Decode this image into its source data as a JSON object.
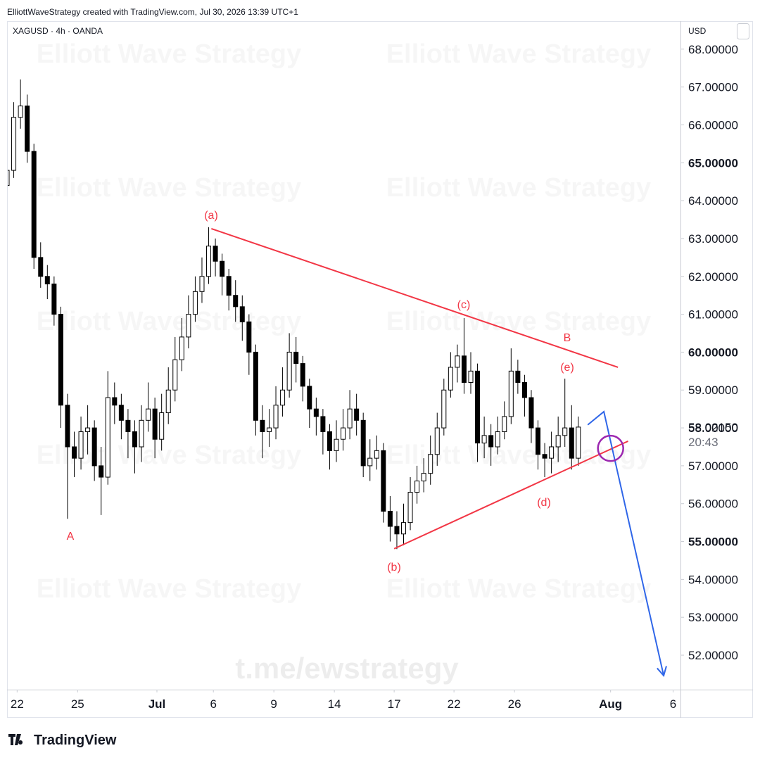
{
  "header": "ElliottWaveStrategy created with TradingView.com, Jul 30, 2026 13:39 UTC+1",
  "logo": "TradingView",
  "chart_data": {
    "type": "candlestick",
    "symbol": "XAGUSD · 4h · OANDA",
    "currency": "USD",
    "watermark": "Elliott Wave Strategy",
    "link_watermark": "t.me/ewstrategy",
    "xlim": [
      0,
      100.2
    ],
    "ylim": [
      51.09,
      68.74
    ],
    "xticks": [
      {
        "value": 1.5,
        "label": "22"
      },
      {
        "value": 10.5,
        "label": "25"
      },
      {
        "value": 22.3,
        "label": "Jul",
        "bold": true
      },
      {
        "value": 30.7,
        "label": "6"
      },
      {
        "value": 39.7,
        "label": "9"
      },
      {
        "value": 48.7,
        "label": "14"
      },
      {
        "value": 57.6,
        "label": "17"
      },
      {
        "value": 66.5,
        "label": "22"
      },
      {
        "value": 75.5,
        "label": "26"
      },
      {
        "value": 89.8,
        "label": "Aug",
        "bold": true
      },
      {
        "value": 99.1,
        "label": "6"
      }
    ],
    "yticks": [
      {
        "value": 52,
        "label": "52.00000"
      },
      {
        "value": 53,
        "label": "53.00000"
      },
      {
        "value": 54,
        "label": "54.00000"
      },
      {
        "value": 55,
        "label": "55.00000",
        "bold": true
      },
      {
        "value": 56,
        "label": "56.00000"
      },
      {
        "value": 57,
        "label": "57.00000"
      },
      {
        "value": 58,
        "label": "58.00000"
      },
      {
        "value": 59,
        "label": "59.00000"
      },
      {
        "value": 60,
        "label": "60.00000",
        "bold": true
      },
      {
        "value": 61,
        "label": "61.00000"
      },
      {
        "value": 62,
        "label": "62.00000"
      },
      {
        "value": 63,
        "label": "63.00000"
      },
      {
        "value": 64,
        "label": "64.00000"
      },
      {
        "value": 65,
        "label": "65.00000",
        "bold": true
      },
      {
        "value": 66,
        "label": "66.00000"
      },
      {
        "value": 67,
        "label": "67.00000"
      },
      {
        "value": 68,
        "label": "68.00000"
      }
    ],
    "open": [
      64.4,
      64.8,
      66.2,
      66.5,
      65.3,
      62.5,
      62.0,
      61.8,
      61.0,
      58.6,
      57.5,
      57.2,
      57.9,
      58.0,
      57.0,
      56.7,
      58.8,
      58.6,
      58.2,
      57.9,
      57.5,
      58.2,
      58.5,
      57.7,
      58.4,
      59.0,
      59.8,
      60.4,
      61.0,
      61.6,
      62.0,
      62.8,
      62.4,
      62.0,
      61.5,
      61.2,
      60.8,
      60.0,
      58.2,
      57.9,
      58.0,
      58.6,
      59.0,
      60.0,
      59.7,
      59.1,
      58.5,
      58.3,
      57.9,
      57.4,
      57.7,
      58.0,
      58.5,
      58.2,
      57.0,
      57.2,
      57.4,
      55.8,
      55.4,
      55.2,
      55.5,
      56.3,
      56.6,
      56.8,
      57.3,
      58.0,
      59.0,
      59.6,
      59.9,
      59.2,
      59.5,
      57.6,
      57.8,
      57.5,
      57.9,
      58.3,
      59.5,
      59.2,
      58.8,
      58.0,
      57.3,
      57.2,
      57.5,
      57.8,
      58.0,
      57.2
    ],
    "high": [
      65.1,
      66.6,
      67.2,
      66.8,
      65.5,
      62.9,
      62.3,
      62.0,
      61.2,
      58.9,
      57.9,
      58.3,
      58.6,
      58.2,
      57.5,
      59.5,
      59.2,
      58.9,
      58.5,
      58.2,
      58.6,
      59.2,
      58.8,
      58.9,
      59.6,
      60.4,
      60.9,
      61.5,
      62.0,
      62.5,
      63.3,
      63.0,
      62.6,
      62.2,
      61.9,
      61.5,
      61.0,
      60.2,
      58.6,
      58.5,
      59.1,
      59.6,
      60.5,
      60.4,
      59.9,
      59.3,
      58.8,
      58.5,
      58.1,
      58.2,
      58.5,
      59.0,
      58.9,
      58.4,
      57.7,
      57.8,
      57.6,
      56.2,
      55.8,
      56.0,
      56.7,
      57.0,
      57.2,
      57.8,
      58.4,
      59.3,
      60.0,
      60.2,
      60.9,
      60.0,
      59.7,
      58.3,
      58.1,
      58.3,
      58.7,
      60.1,
      59.8,
      59.4,
      59.0,
      58.2,
      57.6,
      57.9,
      58.3,
      59.3,
      58.6,
      58.3
    ],
    "low": [
      64.2,
      64.6,
      65.9,
      65.0,
      62.2,
      61.7,
      61.4,
      60.7,
      58.0,
      55.6,
      56.7,
      56.9,
      57.3,
      56.6,
      55.7,
      56.5,
      58.1,
      57.7,
      57.2,
      56.8,
      57.1,
      57.9,
      57.2,
      57.4,
      58.1,
      58.7,
      59.5,
      60.1,
      60.8,
      61.3,
      61.8,
      62.0,
      61.5,
      61.1,
      60.8,
      60.3,
      59.4,
      57.8,
      57.2,
      57.5,
      57.7,
      58.3,
      58.8,
      59.2,
      58.7,
      58.0,
      57.8,
      57.3,
      56.9,
      57.1,
      57.4,
      57.7,
      57.8,
      56.7,
      56.6,
      56.9,
      55.5,
      55.0,
      54.8,
      54.9,
      55.3,
      56.0,
      56.3,
      56.5,
      57.0,
      57.8,
      58.8,
      59.2,
      58.9,
      58.9,
      57.1,
      57.2,
      57.0,
      57.3,
      57.7,
      58.1,
      58.9,
      58.3,
      57.6,
      56.9,
      56.7,
      56.8,
      57.1,
      57.5,
      56.9,
      57.0
    ],
    "close": [
      64.8,
      66.2,
      66.5,
      65.3,
      62.5,
      62.0,
      61.8,
      61.0,
      58.6,
      57.5,
      57.2,
      57.9,
      58.0,
      57.0,
      56.7,
      58.8,
      58.6,
      58.2,
      57.9,
      57.5,
      58.2,
      58.5,
      57.7,
      58.4,
      59.0,
      59.8,
      60.4,
      61.0,
      61.6,
      62.0,
      62.8,
      62.4,
      62.0,
      61.5,
      61.2,
      60.8,
      60.0,
      58.2,
      57.9,
      58.0,
      58.6,
      59.0,
      60.0,
      59.7,
      59.1,
      58.5,
      58.3,
      57.9,
      57.4,
      57.7,
      58.0,
      58.5,
      58.2,
      57.0,
      57.2,
      57.4,
      55.8,
      55.4,
      55.2,
      55.5,
      56.3,
      56.6,
      56.8,
      57.3,
      58.0,
      59.0,
      59.6,
      59.9,
      59.2,
      59.5,
      57.6,
      57.8,
      57.5,
      57.9,
      58.3,
      59.5,
      59.2,
      58.8,
      58.0,
      57.3,
      57.2,
      57.5,
      57.8,
      58.0,
      57.2,
      58.0215
    ],
    "last_price_label": "58.02150",
    "countdown": "20:43",
    "up_color": "#ffffff",
    "down_color": "#000000",
    "wick_color": "#000000",
    "drawings": [
      {
        "type": "line",
        "color": "#f23645",
        "points": [
          [
            30.4,
            63.26
          ],
          [
            90.9,
            59.6
          ]
        ]
      },
      {
        "type": "line",
        "color": "#f23645",
        "points": [
          [
            57.6,
            54.81
          ],
          [
            92.4,
            57.65
          ]
        ]
      },
      {
        "type": "arrow",
        "color": "#2f66e8",
        "points": [
          [
            86.4,
            58.08
          ],
          [
            88.8,
            58.43
          ],
          [
            97.7,
            51.46
          ]
        ]
      },
      {
        "type": "circle",
        "color": "#9c27b0",
        "points": [
          [
            89.8,
            57.46
          ]
        ]
      }
    ],
    "wave_labels": [
      "(a)",
      "(b)",
      "(c)",
      "(d)",
      "(e)",
      "A",
      "B"
    ],
    "wave_label_color": "#f23645"
  }
}
